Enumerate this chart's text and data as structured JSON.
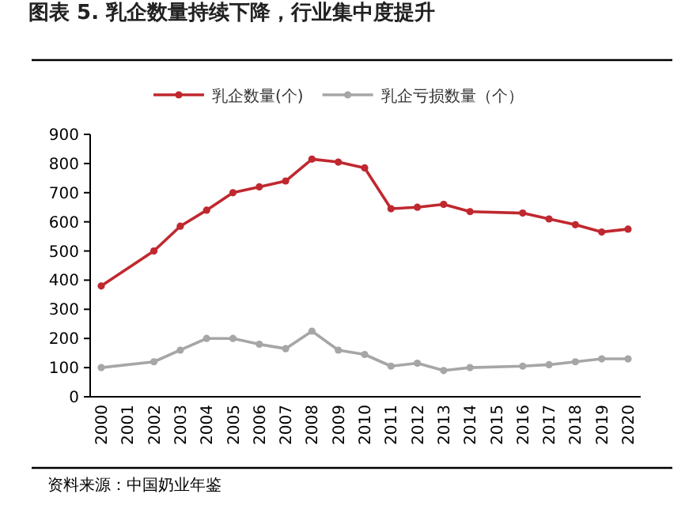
{
  "chart_data": {
    "type": "line",
    "title": "图表 5.  乳企数量持续下降，行业集中度提升",
    "categories": [
      "2000",
      "2001",
      "2002",
      "2003",
      "2004",
      "2005",
      "2006",
      "2007",
      "2008",
      "2009",
      "2010",
      "2011",
      "2012",
      "2013",
      "2014",
      "2015",
      "2016",
      "2017",
      "2018",
      "2019",
      "2020"
    ],
    "series": [
      {
        "name": "乳企数量(个)",
        "color": "#c0282f",
        "values": [
          380,
          null,
          500,
          585,
          640,
          700,
          720,
          740,
          815,
          805,
          785,
          645,
          650,
          660,
          635,
          null,
          630,
          610,
          590,
          565,
          575
        ]
      },
      {
        "name": "乳企亏损数量（个）",
        "color": "#a6a6a6",
        "values": [
          100,
          null,
          120,
          160,
          200,
          200,
          180,
          165,
          225,
          160,
          145,
          105,
          115,
          90,
          100,
          null,
          105,
          110,
          120,
          130,
          130
        ]
      }
    ],
    "ylim": [
      0,
      900
    ],
    "yticks": [
      0,
      100,
      200,
      300,
      400,
      500,
      600,
      700,
      800,
      900
    ],
    "marker": "circle",
    "legend": "top",
    "annotations": [
      "资料来源：中国奶业年鉴"
    ]
  }
}
